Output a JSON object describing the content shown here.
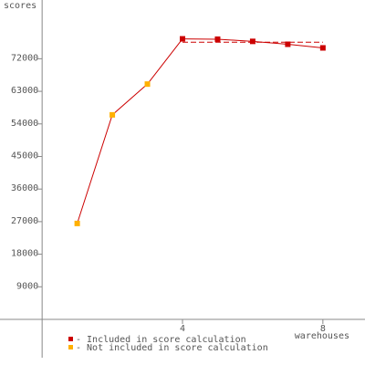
{
  "chart_data": {
    "type": "line",
    "y_label": "scores",
    "x_label": "warehouses",
    "xlim": [
      -1.2,
      9.2
    ],
    "xticks": [
      4,
      8
    ],
    "ylim": [
      -10590,
      88230
    ],
    "yticks": [
      9000,
      18000,
      27000,
      36000,
      45000,
      54000,
      63000,
      72000
    ],
    "line_color": "#cc0000",
    "series": [
      {
        "name": "- Not included in score calculation",
        "color": "#ffb000",
        "x": [
          1,
          2,
          3
        ],
        "values": [
          26500,
          56500,
          65000
        ]
      },
      {
        "name": "- Included in score calculation",
        "color": "#cc0000",
        "x": [
          4,
          5,
          6,
          7,
          8
        ],
        "values": [
          77500,
          77400,
          76800,
          76000,
          75000
        ]
      }
    ],
    "score_line": {
      "value": 76560,
      "x": [
        4,
        8
      ],
      "color": "#cc0000"
    }
  }
}
